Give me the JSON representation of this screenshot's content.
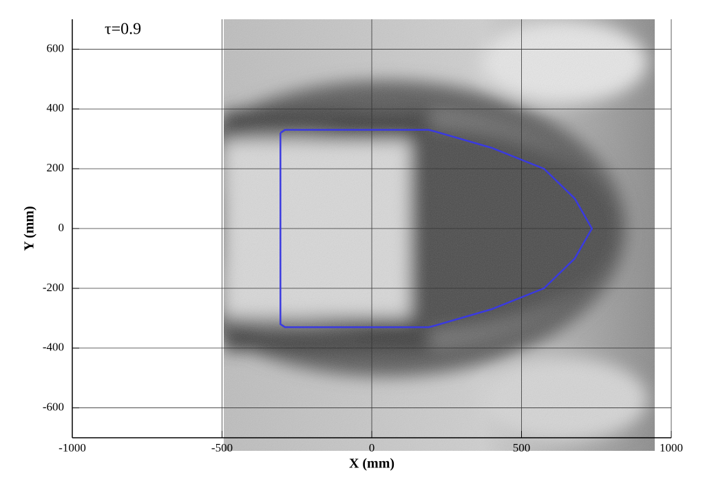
{
  "chart_data": {
    "type": "line",
    "annotation": "τ=0.9",
    "xlabel": "X (mm)",
    "ylabel": "Y (mm)",
    "xlim": [
      -1000,
      1000
    ],
    "xticks": [
      -1000,
      -500,
      0,
      500,
      1000
    ],
    "ylim": [
      -700,
      700
    ],
    "yticks": [
      -600,
      -400,
      -200,
      0,
      200,
      400,
      600
    ],
    "grid": true,
    "series": [
      {
        "color": "#3a3ae0",
        "x": [
          -305,
          -290,
          190,
          210,
          400,
          575,
          678,
          735,
          678,
          575,
          400,
          210,
          190,
          -290,
          -305,
          -305
        ],
        "values": [
          320,
          330,
          330,
          325,
          270,
          200,
          100,
          0,
          -100,
          -200,
          -270,
          -325,
          -330,
          -330,
          -320,
          320
        ]
      }
    ]
  }
}
